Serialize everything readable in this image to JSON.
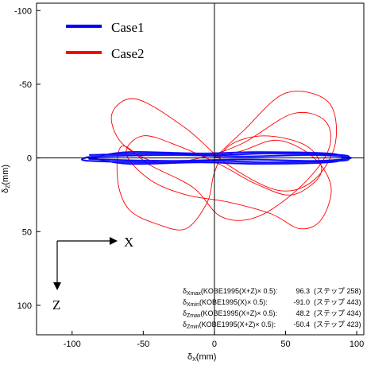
{
  "chart_data": {
    "type": "line",
    "xlabel": "δX(mm)",
    "ylabel": "δZ(mm)",
    "xlim": [
      -125,
      105
    ],
    "ylim": [
      -105,
      120
    ],
    "y_inverted": true,
    "x_ticks": [
      "-100",
      "-50",
      "0",
      "50",
      "100"
    ],
    "y_ticks": [
      "-100",
      "-50",
      "0",
      "50",
      "100"
    ],
    "grid": false,
    "legend_position": "top-left",
    "series": [
      {
        "name": "Case1",
        "color": "#0000ff",
        "x_extent": [
          -91.0,
          96.3
        ],
        "y_extent": [
          -5,
          5
        ],
        "points": [
          [
            -88,
            -2
          ],
          [
            -40,
            -3
          ],
          [
            0,
            -2
          ],
          [
            40,
            -3
          ],
          [
            88,
            -2
          ],
          [
            94,
            0
          ],
          [
            88,
            2
          ],
          [
            40,
            3
          ],
          [
            0,
            2
          ],
          [
            -40,
            3
          ],
          [
            -88,
            2
          ],
          [
            -91,
            0
          ],
          [
            -80,
            -1
          ],
          [
            -30,
            -2
          ],
          [
            20,
            -1
          ],
          [
            70,
            -2
          ],
          [
            96,
            0
          ],
          [
            70,
            2
          ],
          [
            20,
            1
          ],
          [
            -30,
            2
          ],
          [
            -80,
            1
          ],
          [
            -86,
            0
          ],
          [
            -60,
            -4
          ],
          [
            -10,
            -3
          ],
          [
            30,
            -4
          ],
          [
            80,
            -3
          ],
          [
            90,
            0
          ],
          [
            80,
            3
          ],
          [
            30,
            4
          ],
          [
            -10,
            3
          ],
          [
            -60,
            4
          ],
          [
            -86,
            0
          ]
        ]
      },
      {
        "name": "Case2",
        "color": "#ff0000",
        "x_extent": [
          -70,
          85
        ],
        "y_extent": [
          -50.4,
          48.2
        ],
        "points": [
          [
            0,
            0
          ],
          [
            20,
            -18
          ],
          [
            50,
            -44
          ],
          [
            80,
            -38
          ],
          [
            85,
            -10
          ],
          [
            70,
            15
          ],
          [
            45,
            22
          ],
          [
            10,
            5
          ],
          [
            -20,
            -20
          ],
          [
            -55,
            -40
          ],
          [
            -72,
            -30
          ],
          [
            -65,
            -10
          ],
          [
            -40,
            3
          ],
          [
            -10,
            0
          ],
          [
            20,
            -10
          ],
          [
            55,
            -30
          ],
          [
            78,
            -25
          ],
          [
            80,
            -5
          ],
          [
            60,
            20
          ],
          [
            30,
            40
          ],
          [
            5,
            40
          ],
          [
            -15,
            20
          ],
          [
            -45,
            5
          ],
          [
            -65,
            -8
          ],
          [
            -68,
            15
          ],
          [
            -60,
            35
          ],
          [
            -40,
            45
          ],
          [
            -20,
            48
          ],
          [
            -5,
            30
          ],
          [
            0,
            10
          ],
          [
            10,
            -8
          ],
          [
            35,
            -15
          ],
          [
            65,
            -8
          ],
          [
            75,
            10
          ],
          [
            55,
            25
          ],
          [
            30,
            18
          ],
          [
            5,
            5
          ],
          [
            -25,
            -8
          ],
          [
            -50,
            -15
          ],
          [
            -62,
            -3
          ],
          [
            -45,
            15
          ],
          [
            -20,
            25
          ],
          [
            10,
            30
          ],
          [
            40,
            38
          ],
          [
            60,
            48
          ],
          [
            75,
            42
          ],
          [
            82,
            20
          ],
          [
            70,
            0
          ],
          [
            45,
            -12
          ],
          [
            20,
            -5
          ],
          [
            0,
            0
          ]
        ]
      }
    ]
  },
  "legend": [
    {
      "label": "Case1",
      "color": "#0000ff"
    },
    {
      "label": "Case2",
      "color": "#ff0000"
    }
  ],
  "direction_labels": {
    "x": "X",
    "z": "Z"
  },
  "annotations": [
    {
      "prefix": "δ",
      "sub": "Xmax",
      "text": "(KOBE1995(X+Z)× 0.5):",
      "value": "96.3",
      "step": "(ステップ 258)"
    },
    {
      "prefix": "δ",
      "sub": "Xmin",
      "text": "(KOBE1995(X)× 0.5):",
      "value": "-91.0",
      "step": "(ステップ 443)"
    },
    {
      "prefix": "δ",
      "sub": "Zmax",
      "text": "(KOBE1995(X+Z)× 0.5):",
      "value": "48.2",
      "step": "(ステップ 434)"
    },
    {
      "prefix": "δ",
      "sub": "Zmin",
      "text": "(KOBE1995(X+Z)× 0.5):",
      "value": "-50.4",
      "step": "(ステップ 423)"
    }
  ]
}
